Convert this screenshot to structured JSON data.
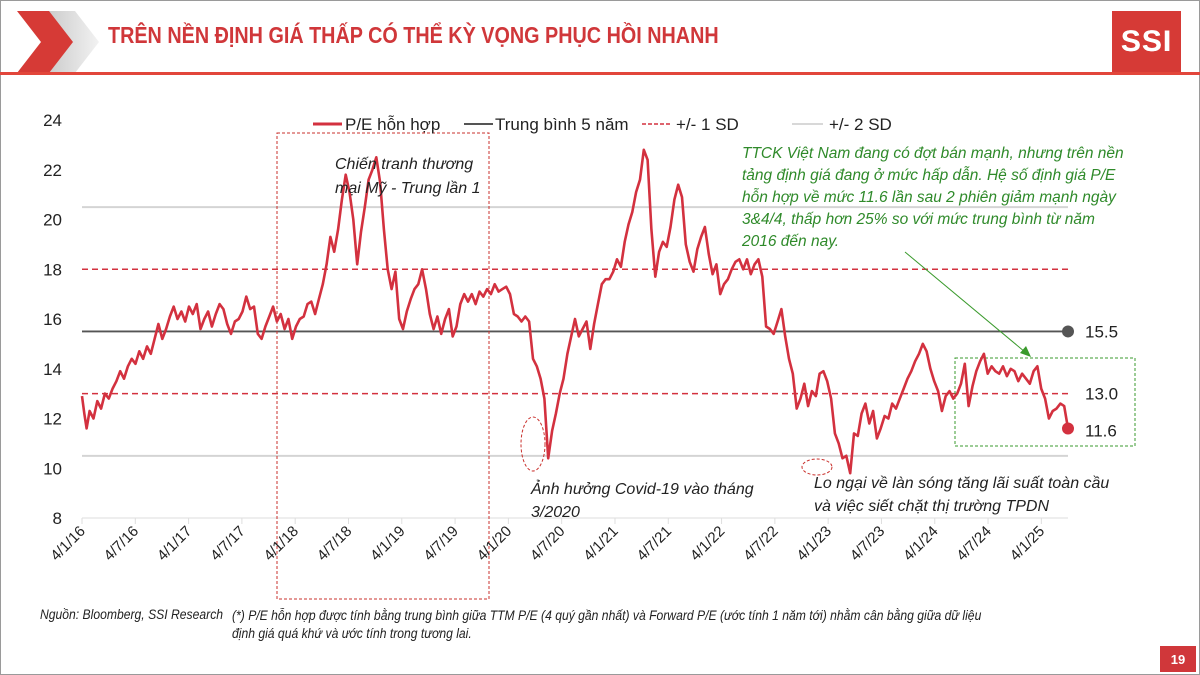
{
  "header": {
    "title": "TRÊN NỀN ĐỊNH GIÁ THẤP CÓ THỂ KỲ VỌNG PHỤC HỒI NHANH",
    "logo_text": "SSI"
  },
  "footer": {
    "source": "Nguồn: Bloomberg, SSI Research",
    "footnote": "(*) P/E hỗn hợp được tính bằng trung bình giữa TTM P/E (4 quý gần nhất) và Forward P/E (ước tính 1 năm tới) nhằm cân bằng giữa dữ liệu định giá quá khứ và ước tính trong tương lai.",
    "page_number": "19"
  },
  "colors": {
    "brand_red": "#d0373a",
    "series_red": "#d3313f",
    "mean_gray": "#555555",
    "sd2_gray": "#d4d4d4",
    "annotation_green": "#2f8a2a"
  },
  "chart_data": {
    "type": "line",
    "title": "",
    "xlabel": "",
    "ylabel": "",
    "ylim": [
      8,
      24
    ],
    "yticks": [
      "24",
      "22",
      "20",
      "18",
      "16",
      "14",
      "12",
      "10",
      "8"
    ],
    "ytick_values": [
      24,
      22,
      20,
      18,
      16,
      14,
      12,
      10,
      8
    ],
    "xticks": [
      "4/1/16",
      "4/7/16",
      "4/1/17",
      "4/7/17",
      "4/1/18",
      "4/7/18",
      "4/1/19",
      "4/7/19",
      "4/1/20",
      "4/7/20",
      "4/1/21",
      "4/7/21",
      "4/1/22",
      "4/7/22",
      "4/1/23",
      "4/7/23",
      "4/1/24",
      "4/7/24",
      "4/1/25"
    ],
    "x_unit": "months since Jan 2016",
    "grid": false,
    "legend": {
      "position": "top",
      "entries": [
        {
          "label": "P/E hỗn hợp",
          "style": "solid-red"
        },
        {
          "label": "Trung bình 5 năm",
          "style": "solid-gray"
        },
        {
          "label": "+/- 1 SD",
          "style": "dashed-red"
        },
        {
          "label": "+/- 2 SD",
          "style": "solid-lightgray"
        }
      ]
    },
    "reference_lines": [
      {
        "name": "Trung bình 5 năm",
        "value": 15.5,
        "label": "15.5"
      },
      {
        "name": "+1 SD",
        "value": 18.0
      },
      {
        "name": "-1 SD",
        "value": 13.0,
        "label": "13.0"
      },
      {
        "name": "+2 SD",
        "value": 20.5
      },
      {
        "name": "-2 SD",
        "value": 10.5
      }
    ],
    "series": [
      {
        "name": "P/E hỗn hợp",
        "last_value_label": "11.6",
        "points": [
          [
            0,
            12.9
          ],
          [
            0.3,
            12.2
          ],
          [
            0.6,
            11.6
          ],
          [
            1,
            12.3
          ],
          [
            1.5,
            12.0
          ],
          [
            2,
            12.7
          ],
          [
            2.5,
            12.4
          ],
          [
            3,
            13.0
          ],
          [
            3.5,
            12.8
          ],
          [
            4,
            13.2
          ],
          [
            4.5,
            13.5
          ],
          [
            5,
            13.9
          ],
          [
            5.5,
            13.6
          ],
          [
            6,
            14.1
          ],
          [
            6.5,
            14.4
          ],
          [
            7,
            14.2
          ],
          [
            7.5,
            14.7
          ],
          [
            8,
            14.4
          ],
          [
            8.5,
            14.9
          ],
          [
            9,
            14.6
          ],
          [
            9.5,
            15.2
          ],
          [
            10,
            15.8
          ],
          [
            10.5,
            15.2
          ],
          [
            11,
            15.6
          ],
          [
            11.5,
            16.1
          ],
          [
            12,
            16.5
          ],
          [
            12.5,
            16.0
          ],
          [
            13,
            16.3
          ],
          [
            13.5,
            15.9
          ],
          [
            14,
            16.5
          ],
          [
            14.5,
            16.2
          ],
          [
            15,
            16.6
          ],
          [
            15.5,
            15.6
          ],
          [
            16,
            16.0
          ],
          [
            16.5,
            16.3
          ],
          [
            17,
            15.7
          ],
          [
            17.5,
            16.2
          ],
          [
            18,
            16.6
          ],
          [
            18.5,
            16.4
          ],
          [
            19,
            15.8
          ],
          [
            19.5,
            15.4
          ],
          [
            20,
            15.9
          ],
          [
            20.5,
            16.0
          ],
          [
            21,
            16.3
          ],
          [
            21.5,
            16.9
          ],
          [
            22,
            16.4
          ],
          [
            22.5,
            16.5
          ],
          [
            23,
            15.4
          ],
          [
            23.5,
            15.2
          ],
          [
            24,
            15.7
          ],
          [
            24.5,
            16.1
          ],
          [
            25,
            16.5
          ],
          [
            25.5,
            15.9
          ],
          [
            26,
            16.2
          ],
          [
            26.5,
            15.6
          ],
          [
            27,
            16.0
          ],
          [
            27.5,
            15.2
          ],
          [
            28,
            15.7
          ],
          [
            28.5,
            16.0
          ],
          [
            29,
            16.1
          ],
          [
            29.5,
            16.6
          ],
          [
            30,
            16.7
          ],
          [
            30.5,
            16.2
          ],
          [
            31,
            16.8
          ],
          [
            31.5,
            17.4
          ],
          [
            32,
            18.2
          ],
          [
            32.5,
            19.3
          ],
          [
            33,
            18.7
          ],
          [
            33.5,
            19.6
          ],
          [
            34,
            20.8
          ],
          [
            34.5,
            21.8
          ],
          [
            35,
            21.1
          ],
          [
            35.5,
            20.0
          ],
          [
            36,
            18.2
          ],
          [
            36.5,
            19.5
          ],
          [
            37,
            20.5
          ],
          [
            37.5,
            21.6
          ],
          [
            38,
            22.0
          ],
          [
            38.5,
            22.5
          ],
          [
            39,
            21.5
          ],
          [
            39.5,
            19.6
          ],
          [
            40,
            18.0
          ],
          [
            40.5,
            17.2
          ],
          [
            41,
            17.9
          ],
          [
            41.5,
            16.0
          ],
          [
            42,
            15.6
          ],
          [
            42.5,
            16.3
          ],
          [
            43,
            16.8
          ],
          [
            43.5,
            17.2
          ],
          [
            44,
            17.4
          ],
          [
            44.5,
            18.0
          ],
          [
            45,
            17.2
          ],
          [
            45.5,
            16.2
          ],
          [
            46,
            15.6
          ],
          [
            46.5,
            16.1
          ],
          [
            47,
            15.4
          ],
          [
            47.5,
            16.0
          ],
          [
            48,
            16.4
          ],
          [
            48.5,
            15.3
          ],
          [
            49,
            15.7
          ],
          [
            49.5,
            16.6
          ],
          [
            50,
            17.0
          ],
          [
            50.5,
            16.7
          ],
          [
            51,
            17.0
          ],
          [
            51.5,
            16.6
          ],
          [
            52,
            17.1
          ],
          [
            52.5,
            16.9
          ],
          [
            53,
            17.2
          ],
          [
            53.5,
            17.0
          ],
          [
            54,
            17.4
          ],
          [
            54.5,
            17.1
          ],
          [
            55,
            17.2
          ],
          [
            55.5,
            17.3
          ],
          [
            56,
            17.0
          ],
          [
            56.5,
            16.2
          ],
          [
            57,
            16.1
          ],
          [
            57.5,
            15.9
          ],
          [
            58,
            16.1
          ],
          [
            58.5,
            15.9
          ],
          [
            59,
            14.4
          ],
          [
            59.5,
            14.1
          ],
          [
            60,
            13.6
          ],
          [
            60.5,
            12.8
          ],
          [
            61,
            10.4
          ],
          [
            61.5,
            11.5
          ],
          [
            62,
            12.2
          ],
          [
            62.5,
            13.0
          ],
          [
            63,
            13.6
          ],
          [
            63.5,
            14.6
          ],
          [
            64,
            15.3
          ],
          [
            64.5,
            16.0
          ],
          [
            65,
            15.3
          ],
          [
            65.5,
            15.6
          ],
          [
            66,
            15.9
          ],
          [
            66.5,
            14.8
          ],
          [
            67,
            15.8
          ],
          [
            67.5,
            16.6
          ],
          [
            68,
            17.4
          ],
          [
            68.5,
            17.6
          ],
          [
            69,
            17.6
          ],
          [
            69.5,
            17.9
          ],
          [
            70,
            18.4
          ],
          [
            70.5,
            18.1
          ],
          [
            71,
            19.1
          ],
          [
            71.5,
            19.8
          ],
          [
            72,
            20.3
          ],
          [
            72.5,
            21.1
          ],
          [
            73,
            21.6
          ],
          [
            73.5,
            22.8
          ],
          [
            74,
            22.4
          ],
          [
            74.5,
            19.6
          ],
          [
            75,
            17.7
          ],
          [
            75.5,
            18.7
          ],
          [
            76,
            19.1
          ],
          [
            76.5,
            18.9
          ],
          [
            77,
            19.7
          ],
          [
            77.5,
            20.8
          ],
          [
            78,
            21.4
          ],
          [
            78.5,
            20.9
          ],
          [
            79,
            19.0
          ],
          [
            79.5,
            18.3
          ],
          [
            80,
            17.9
          ],
          [
            80.5,
            18.8
          ],
          [
            81,
            19.3
          ],
          [
            81.5,
            19.7
          ],
          [
            82,
            18.6
          ],
          [
            82.5,
            17.8
          ],
          [
            83,
            18.2
          ],
          [
            83.5,
            17.0
          ],
          [
            84,
            17.4
          ],
          [
            84.5,
            17.6
          ],
          [
            85,
            18.0
          ],
          [
            85.5,
            18.3
          ],
          [
            86,
            18.4
          ],
          [
            86.5,
            18.0
          ],
          [
            87,
            18.4
          ],
          [
            87.5,
            17.8
          ],
          [
            88,
            18.2
          ],
          [
            88.5,
            18.4
          ],
          [
            89,
            17.7
          ],
          [
            89.5,
            15.7
          ],
          [
            90,
            15.6
          ],
          [
            90.5,
            15.4
          ],
          [
            91,
            15.9
          ],
          [
            91.5,
            16.4
          ],
          [
            92,
            15.3
          ],
          [
            92.5,
            14.4
          ],
          [
            93,
            13.8
          ],
          [
            93.5,
            12.4
          ],
          [
            94,
            12.8
          ],
          [
            94.5,
            13.4
          ],
          [
            95,
            12.5
          ],
          [
            95.5,
            13.1
          ],
          [
            96,
            12.9
          ],
          [
            96.5,
            13.8
          ],
          [
            97,
            13.9
          ],
          [
            97.5,
            13.5
          ],
          [
            98,
            12.8
          ],
          [
            98.5,
            11.4
          ],
          [
            99,
            11.0
          ],
          [
            99.5,
            10.4
          ],
          [
            100,
            10.5
          ],
          [
            100.5,
            9.8
          ],
          [
            101,
            11.4
          ],
          [
            101.5,
            11.3
          ],
          [
            102,
            12.2
          ],
          [
            102.5,
            12.6
          ],
          [
            103,
            11.8
          ],
          [
            103.5,
            12.3
          ],
          [
            104,
            11.2
          ],
          [
            104.5,
            11.6
          ],
          [
            105,
            12.1
          ],
          [
            105.5,
            12.0
          ],
          [
            106,
            12.6
          ],
          [
            106.5,
            12.4
          ],
          [
            107,
            12.8
          ],
          [
            107.5,
            13.2
          ],
          [
            108,
            13.6
          ],
          [
            108.5,
            13.9
          ],
          [
            109,
            14.3
          ],
          [
            109.5,
            14.6
          ],
          [
            110,
            15.0
          ],
          [
            110.5,
            14.7
          ],
          [
            111,
            14.0
          ],
          [
            111.5,
            13.5
          ],
          [
            112,
            13.1
          ],
          [
            112.5,
            12.3
          ],
          [
            113,
            12.9
          ],
          [
            113.5,
            13.1
          ],
          [
            114,
            12.8
          ],
          [
            114.5,
            13.0
          ],
          [
            115,
            13.4
          ],
          [
            115.5,
            14.2
          ],
          [
            116,
            12.5
          ],
          [
            116.5,
            13.3
          ],
          [
            117,
            13.9
          ],
          [
            117.5,
            14.3
          ],
          [
            118,
            14.6
          ],
          [
            118.5,
            13.8
          ],
          [
            119,
            14.1
          ],
          [
            119.5,
            13.9
          ],
          [
            120,
            13.8
          ],
          [
            120.5,
            14.1
          ],
          [
            121,
            13.7
          ],
          [
            121.5,
            14.0
          ],
          [
            122,
            13.9
          ],
          [
            122.5,
            13.5
          ],
          [
            123,
            13.8
          ],
          [
            123.5,
            13.6
          ],
          [
            124,
            13.4
          ],
          [
            124.5,
            13.9
          ],
          [
            125,
            14.1
          ],
          [
            125.5,
            13.2
          ],
          [
            126,
            12.8
          ],
          [
            126.5,
            12.0
          ],
          [
            127,
            12.3
          ],
          [
            127.5,
            12.4
          ],
          [
            128,
            12.6
          ],
          [
            128.5,
            12.5
          ],
          [
            129,
            11.6
          ]
        ]
      }
    ],
    "annotations": [
      {
        "id": "trade-war",
        "text_lines": [
          "Chiến tranh thương",
          "mại Mỹ - Trung lần 1"
        ]
      },
      {
        "id": "covid",
        "text_lines": [
          "Ảnh hưởng Covid-19 vào tháng",
          "3/2020"
        ]
      },
      {
        "id": "rates",
        "text_lines": [
          "Lo ngại về làn sóng tăng lãi suất toàn cầu",
          "và việc siết chặt thị trường TPDN"
        ]
      },
      {
        "id": "commentary",
        "text_lines": [
          "TTCK Việt Nam đang có đợt bán mạnh, nhưng trên nền",
          "tảng định giá đang ở mức hấp dẫn. Hệ số định giá P/E",
          "hỗn hợp về mức 11.6 lần sau 2 phiên giảm mạnh ngày",
          "3&4/4, thấp hơn 25% so với mức trung bình từ năm",
          "2016 đến nay."
        ]
      }
    ]
  }
}
